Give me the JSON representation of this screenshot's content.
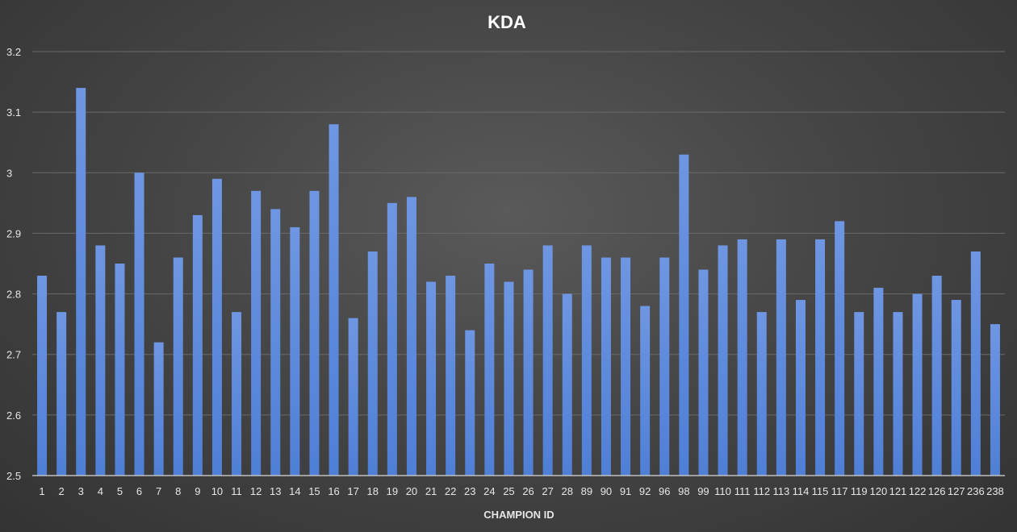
{
  "chart_data": {
    "type": "bar",
    "title": "KDA",
    "xlabel": "CHAMPION ID",
    "ylabel": "",
    "ylim": [
      2.5,
      3.2
    ],
    "yticks": [
      "2.5",
      "2.6",
      "2.7",
      "2.8",
      "2.9",
      "3",
      "3.1",
      "3.2"
    ],
    "grid": true,
    "legend": "none",
    "bar_color": "#4f7fd6",
    "bar_color_light": "#6e96e2",
    "categories": [
      "1",
      "2",
      "3",
      "4",
      "5",
      "6",
      "7",
      "8",
      "9",
      "10",
      "11",
      "12",
      "13",
      "14",
      "15",
      "16",
      "17",
      "18",
      "19",
      "20",
      "21",
      "22",
      "23",
      "24",
      "25",
      "26",
      "27",
      "28",
      "89",
      "90",
      "91",
      "92",
      "96",
      "98",
      "99",
      "110",
      "111",
      "112",
      "113",
      "114",
      "115",
      "117",
      "119",
      "120",
      "121",
      "122",
      "126",
      "127",
      "236",
      "238"
    ],
    "values": [
      2.83,
      2.77,
      3.14,
      2.88,
      2.85,
      3.0,
      2.72,
      2.86,
      2.93,
      2.99,
      2.77,
      2.97,
      2.94,
      2.91,
      2.97,
      3.08,
      2.76,
      2.87,
      2.95,
      2.96,
      2.82,
      2.83,
      2.74,
      2.85,
      2.82,
      2.84,
      2.88,
      2.8,
      2.88,
      2.86,
      2.86,
      2.78,
      2.86,
      3.03,
      2.84,
      2.88,
      2.89,
      2.77,
      2.89,
      2.79,
      2.89,
      2.92,
      2.77,
      2.81,
      2.77,
      2.8,
      2.83,
      2.79,
      2.87,
      2.75
    ]
  }
}
